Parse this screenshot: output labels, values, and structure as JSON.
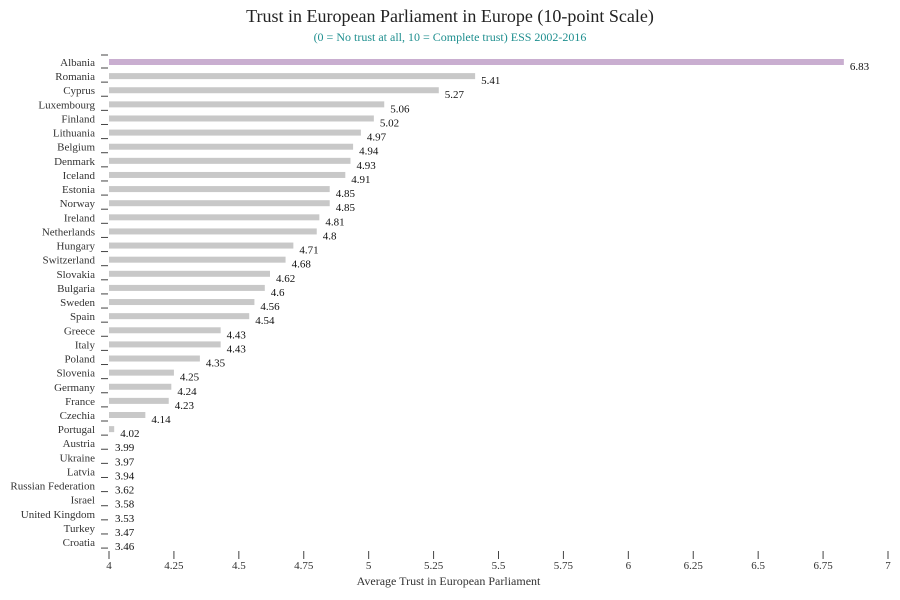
{
  "chart_data": {
    "type": "bar",
    "orientation": "horizontal",
    "title": "Trust in European Parliament in Europe (10-point Scale)",
    "subtitle": "(0 = No trust at all, 10 = Complete trust) ESS 2002-2016",
    "xlabel": "Average Trust in European Parliament",
    "ylabel": "",
    "xlim": [
      4,
      7
    ],
    "xticks": [
      "4",
      "4.25",
      "4.5",
      "4.75",
      "5",
      "5.25",
      "5.5",
      "5.75",
      "6",
      "6.25",
      "6.5",
      "6.75",
      "7"
    ],
    "grid": false,
    "colors": {
      "highlight": "#c9aed0",
      "bar": "#c8c8c8",
      "subtitle": "#1f8f8f"
    },
    "categories": [
      "Albania",
      "Romania",
      "Cyprus",
      "Luxembourg",
      "Finland",
      "Lithuania",
      "Belgium",
      "Denmark",
      "Iceland",
      "Estonia",
      "Norway",
      "Ireland",
      "Netherlands",
      "Hungary",
      "Switzerland",
      "Slovakia",
      "Bulgaria",
      "Sweden",
      "Spain",
      "Greece",
      "Italy",
      "Poland",
      "Slovenia",
      "Germany",
      "France",
      "Czechia",
      "Portugal",
      "Austria",
      "Ukraine",
      "Latvia",
      "Russian Federation",
      "Israel",
      "United Kingdom",
      "Turkey",
      "Croatia"
    ],
    "values": [
      6.83,
      5.41,
      5.27,
      5.06,
      5.02,
      4.97,
      4.94,
      4.93,
      4.91,
      4.85,
      4.85,
      4.81,
      4.8,
      4.71,
      4.68,
      4.62,
      4.6,
      4.56,
      4.54,
      4.43,
      4.43,
      4.35,
      4.25,
      4.24,
      4.23,
      4.14,
      4.02,
      3.99,
      3.97,
      3.94,
      3.62,
      3.58,
      3.53,
      3.47,
      3.46
    ],
    "value_labels": [
      "6.83",
      "5.41",
      "5.27",
      "5.06",
      "5.02",
      "4.97",
      "4.94",
      "4.93",
      "4.91",
      "4.85",
      "4.85",
      "4.81",
      "4.8",
      "4.71",
      "4.68",
      "4.62",
      "4.6",
      "4.56",
      "4.54",
      "4.43",
      "4.43",
      "4.35",
      "4.25",
      "4.24",
      "4.23",
      "4.14",
      "4.02",
      "3.99",
      "3.97",
      "3.94",
      "3.62",
      "3.58",
      "3.53",
      "3.47",
      "3.46"
    ],
    "highlight_index": 0
  }
}
